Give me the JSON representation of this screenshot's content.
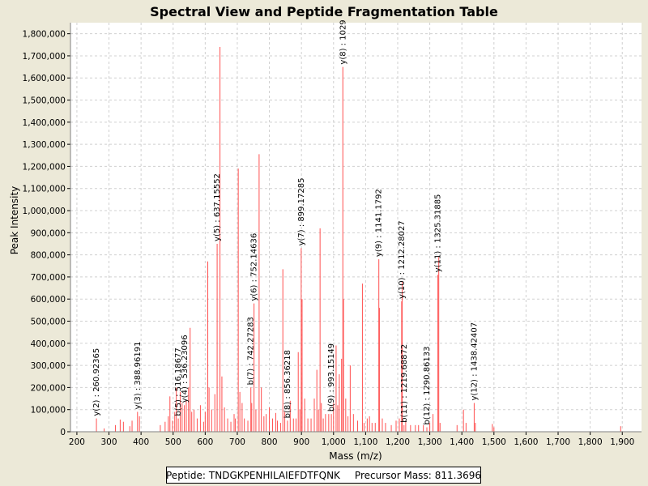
{
  "chart_data": {
    "type": "bar",
    "title": "Spectral View and Peptide Fragmentation Table",
    "xlabel": "Mass (m/z)",
    "ylabel": "Peak Intensity",
    "xlim": [
      180,
      1960
    ],
    "ylim": [
      0,
      1850000
    ],
    "x_ticks": [
      200,
      300,
      400,
      500,
      600,
      700,
      800,
      900,
      1000,
      1100,
      1200,
      1300,
      1400,
      1500,
      1600,
      1700,
      1800,
      1900
    ],
    "x_tick_labels": [
      "200",
      "300",
      "400",
      "500",
      "600",
      "700",
      "800",
      "900",
      "1,000",
      "1,100",
      "1,200",
      "1,300",
      "1,400",
      "1,500",
      "1,600",
      "1,700",
      "1,800",
      "1,900"
    ],
    "y_ticks": [
      0,
      100000,
      200000,
      300000,
      400000,
      500000,
      600000,
      700000,
      800000,
      900000,
      1000000,
      1100000,
      1200000,
      1300000,
      1400000,
      1500000,
      1600000,
      1700000,
      1800000
    ],
    "y_tick_labels": [
      "0",
      "100,000",
      "200,000",
      "300,000",
      "400,000",
      "500,000",
      "600,000",
      "700,000",
      "800,000",
      "900,000",
      "1,000,000",
      "1,100,000",
      "1,200,000",
      "1,300,000",
      "1,400,000",
      "1,500,000",
      "1,600,000",
      "1,700,000",
      "1,800,000"
    ],
    "grid": true,
    "peaks": [
      {
        "mz": 260.9,
        "intensity": 60000
      },
      {
        "mz": 285,
        "intensity": 15000
      },
      {
        "mz": 320,
        "intensity": 30000
      },
      {
        "mz": 335,
        "intensity": 55000
      },
      {
        "mz": 345,
        "intensity": 45000
      },
      {
        "mz": 365,
        "intensity": 25000
      },
      {
        "mz": 372,
        "intensity": 50000
      },
      {
        "mz": 389,
        "intensity": 90000
      },
      {
        "mz": 395,
        "intensity": 70000
      },
      {
        "mz": 460,
        "intensity": 30000
      },
      {
        "mz": 475,
        "intensity": 45000
      },
      {
        "mz": 485,
        "intensity": 70000
      },
      {
        "mz": 490,
        "intensity": 160000
      },
      {
        "mz": 498,
        "intensity": 50000
      },
      {
        "mz": 505,
        "intensity": 90000
      },
      {
        "mz": 510,
        "intensity": 200000
      },
      {
        "mz": 516,
        "intensity": 60000
      },
      {
        "mz": 522,
        "intensity": 180000
      },
      {
        "mz": 528,
        "intensity": 130000
      },
      {
        "mz": 535,
        "intensity": 120000
      },
      {
        "mz": 541,
        "intensity": 140000
      },
      {
        "mz": 548,
        "intensity": 200000
      },
      {
        "mz": 553,
        "intensity": 470000
      },
      {
        "mz": 558,
        "intensity": 90000
      },
      {
        "mz": 565,
        "intensity": 100000
      },
      {
        "mz": 575,
        "intensity": 60000
      },
      {
        "mz": 585,
        "intensity": 120000
      },
      {
        "mz": 595,
        "intensity": 45000
      },
      {
        "mz": 600,
        "intensity": 90000
      },
      {
        "mz": 608,
        "intensity": 770000
      },
      {
        "mz": 612,
        "intensity": 200000
      },
      {
        "mz": 620,
        "intensity": 100000
      },
      {
        "mz": 630,
        "intensity": 170000
      },
      {
        "mz": 637.2,
        "intensity": 850000
      },
      {
        "mz": 646,
        "intensity": 1740000
      },
      {
        "mz": 652,
        "intensity": 250000
      },
      {
        "mz": 660,
        "intensity": 110000
      },
      {
        "mz": 670,
        "intensity": 60000
      },
      {
        "mz": 680,
        "intensity": 45000
      },
      {
        "mz": 690,
        "intensity": 80000
      },
      {
        "mz": 694,
        "intensity": 60000
      },
      {
        "mz": 703,
        "intensity": 1190000
      },
      {
        "mz": 708,
        "intensity": 180000
      },
      {
        "mz": 715,
        "intensity": 130000
      },
      {
        "mz": 722,
        "intensity": 60000
      },
      {
        "mz": 733,
        "intensity": 50000
      },
      {
        "mz": 742.3,
        "intensity": 200000
      },
      {
        "mz": 745,
        "intensity": 130000
      },
      {
        "mz": 752.1,
        "intensity": 580000
      },
      {
        "mz": 758,
        "intensity": 100000
      },
      {
        "mz": 768,
        "intensity": 1255000
      },
      {
        "mz": 775,
        "intensity": 200000
      },
      {
        "mz": 783,
        "intensity": 70000
      },
      {
        "mz": 790,
        "intensity": 80000
      },
      {
        "mz": 800,
        "intensity": 110000
      },
      {
        "mz": 810,
        "intensity": 60000
      },
      {
        "mz": 820,
        "intensity": 85000
      },
      {
        "mz": 825,
        "intensity": 50000
      },
      {
        "mz": 835,
        "intensity": 40000
      },
      {
        "mz": 842,
        "intensity": 735000
      },
      {
        "mz": 848,
        "intensity": 90000
      },
      {
        "mz": 856.4,
        "intensity": 50000
      },
      {
        "mz": 865,
        "intensity": 140000
      },
      {
        "mz": 875,
        "intensity": 60000
      },
      {
        "mz": 883,
        "intensity": 60000
      },
      {
        "mz": 890,
        "intensity": 360000
      },
      {
        "mz": 895,
        "intensity": 100000
      },
      {
        "mz": 899.2,
        "intensity": 830000
      },
      {
        "mz": 902,
        "intensity": 600000
      },
      {
        "mz": 910,
        "intensity": 150000
      },
      {
        "mz": 920,
        "intensity": 60000
      },
      {
        "mz": 930,
        "intensity": 60000
      },
      {
        "mz": 940,
        "intensity": 150000
      },
      {
        "mz": 948,
        "intensity": 280000
      },
      {
        "mz": 953,
        "intensity": 100000
      },
      {
        "mz": 958,
        "intensity": 920000
      },
      {
        "mz": 962,
        "intensity": 130000
      },
      {
        "mz": 968,
        "intensity": 60000
      },
      {
        "mz": 975,
        "intensity": 80000
      },
      {
        "mz": 985,
        "intensity": 80000
      },
      {
        "mz": 993.2,
        "intensity": 80000
      },
      {
        "mz": 1000,
        "intensity": 130000
      },
      {
        "mz": 1008,
        "intensity": 390000
      },
      {
        "mz": 1013,
        "intensity": 120000
      },
      {
        "mz": 1018,
        "intensity": 260000
      },
      {
        "mz": 1025,
        "intensity": 330000
      },
      {
        "mz": 1029,
        "intensity": 1650000
      },
      {
        "mz": 1031,
        "intensity": 600000
      },
      {
        "mz": 1038,
        "intensity": 150000
      },
      {
        "mz": 1045,
        "intensity": 70000
      },
      {
        "mz": 1052,
        "intensity": 300000
      },
      {
        "mz": 1062,
        "intensity": 80000
      },
      {
        "mz": 1075,
        "intensity": 50000
      },
      {
        "mz": 1090,
        "intensity": 670000
      },
      {
        "mz": 1095,
        "intensity": 40000
      },
      {
        "mz": 1105,
        "intensity": 60000
      },
      {
        "mz": 1112,
        "intensity": 70000
      },
      {
        "mz": 1120,
        "intensity": 40000
      },
      {
        "mz": 1130,
        "intensity": 40000
      },
      {
        "mz": 1141.2,
        "intensity": 780000
      },
      {
        "mz": 1143,
        "intensity": 560000
      },
      {
        "mz": 1152,
        "intensity": 60000
      },
      {
        "mz": 1162,
        "intensity": 40000
      },
      {
        "mz": 1180,
        "intensity": 30000
      },
      {
        "mz": 1195,
        "intensity": 50000
      },
      {
        "mz": 1205,
        "intensity": 60000
      },
      {
        "mz": 1212.3,
        "intensity": 590000
      },
      {
        "mz": 1214,
        "intensity": 680000
      },
      {
        "mz": 1219.7,
        "intensity": 30000
      },
      {
        "mz": 1225,
        "intensity": 50000
      },
      {
        "mz": 1240,
        "intensity": 30000
      },
      {
        "mz": 1255,
        "intensity": 30000
      },
      {
        "mz": 1265,
        "intensity": 30000
      },
      {
        "mz": 1280,
        "intensity": 30000
      },
      {
        "mz": 1290.9,
        "intensity": 20000
      },
      {
        "mz": 1300,
        "intensity": 40000
      },
      {
        "mz": 1310,
        "intensity": 80000
      },
      {
        "mz": 1325.3,
        "intensity": 710000
      },
      {
        "mz": 1328,
        "intensity": 790000
      },
      {
        "mz": 1332,
        "intensity": 40000
      },
      {
        "mz": 1385,
        "intensity": 30000
      },
      {
        "mz": 1405,
        "intensity": 100000
      },
      {
        "mz": 1413,
        "intensity": 40000
      },
      {
        "mz": 1438.4,
        "intensity": 130000
      },
      {
        "mz": 1442,
        "intensity": 40000
      },
      {
        "mz": 1495,
        "intensity": 35000
      },
      {
        "mz": 1500,
        "intensity": 20000
      },
      {
        "mz": 1895,
        "intensity": 25000
      }
    ],
    "annotations": [
      {
        "label": "y(2) : 260.92365",
        "mz": 260.9,
        "intensity": 60000
      },
      {
        "label": "y(3) : 388.96191",
        "mz": 389.0,
        "intensity": 90000
      },
      {
        "label": "b(5) : 516.18677",
        "mz": 516.2,
        "intensity": 60000
      },
      {
        "label": "y(4) : 536.23096",
        "mz": 536.2,
        "intensity": 120000
      },
      {
        "label": "y(5) : 637.15552",
        "mz": 637.2,
        "intensity": 850000
      },
      {
        "label": "b(7) : 742.27283",
        "mz": 742.3,
        "intensity": 200000
      },
      {
        "label": "y(6) : 752.14636",
        "mz": 752.1,
        "intensity": 580000
      },
      {
        "label": "b(8) : 856.36218",
        "mz": 856.4,
        "intensity": 50000
      },
      {
        "label": "y(7) : 899.17285",
        "mz": 899.2,
        "intensity": 830000
      },
      {
        "label": "b(9) : 993.15149",
        "mz": 993.2,
        "intensity": 80000
      },
      {
        "label": "y(8) : 1029",
        "mz": 1029.0,
        "intensity": 1650000
      },
      {
        "label": "y(9) : 1141.1792",
        "mz": 1141.2,
        "intensity": 780000
      },
      {
        "label": "y(10) : 1212.28027",
        "mz": 1212.3,
        "intensity": 590000
      },
      {
        "label": "b(11) : 1219.68872",
        "mz": 1219.7,
        "intensity": 30000
      },
      {
        "label": "b(12) : 1290.86133",
        "mz": 1290.9,
        "intensity": 20000
      },
      {
        "label": "y(11) : 1325.31885",
        "mz": 1325.3,
        "intensity": 710000
      },
      {
        "label": "y(12) : 1438.42407",
        "mz": 1438.4,
        "intensity": 130000
      }
    ],
    "colors": {
      "peak": "#ff5050",
      "background": "#ece9d8",
      "plot_bg": "#ffffff",
      "grid": "#d0d0d0",
      "axis": "#000000"
    }
  },
  "legend": {
    "peptide_label": "Peptide:",
    "peptide_value": "TNDGKPENHILAIEFDTFQNK",
    "precursor_label": "Precursor Mass:",
    "precursor_value": "811.3696"
  }
}
